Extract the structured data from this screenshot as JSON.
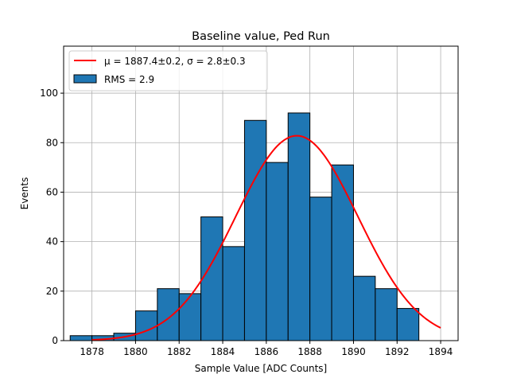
{
  "chart_data": {
    "type": "bar",
    "title": "Baseline value, Ped Run",
    "xlabel": "Sample Value [ADC Counts]",
    "ylabel": "Events",
    "xlim": [
      1876.7,
      1894.8
    ],
    "ylim": [
      0,
      119
    ],
    "xticks": [
      1878,
      1880,
      1882,
      1884,
      1886,
      1888,
      1890,
      1892,
      1894
    ],
    "yticks": [
      0,
      20,
      40,
      60,
      80,
      100
    ],
    "grid": true,
    "legend_position": "top-left",
    "bin_width": 1,
    "bins": [
      {
        "x": 1877.5,
        "count": 2
      },
      {
        "x": 1878.5,
        "count": 2
      },
      {
        "x": 1879.5,
        "count": 3
      },
      {
        "x": 1880.5,
        "count": 12
      },
      {
        "x": 1881.5,
        "count": 21
      },
      {
        "x": 1882.5,
        "count": 19
      },
      {
        "x": 1883.5,
        "count": 50
      },
      {
        "x": 1884.5,
        "count": 38
      },
      {
        "x": 1885.5,
        "count": 89
      },
      {
        "x": 1886.5,
        "count": 72
      },
      {
        "x": 1887.5,
        "count": 92
      },
      {
        "x": 1888.5,
        "count": 58
      },
      {
        "x": 1889.5,
        "count": 71
      },
      {
        "x": 1890.5,
        "count": 26
      },
      {
        "x": 1891.5,
        "count": 21
      },
      {
        "x": 1892.5,
        "count": 13
      }
    ],
    "fit": {
      "type": "gaussian",
      "mu": 1887.4,
      "sigma": 2.8,
      "amplitude": 82.8,
      "x_range": [
        1878,
        1894
      ]
    },
    "series": [
      {
        "name": "μ = 1887.4±0.2, σ = 2.8±0.3",
        "kind": "line",
        "color": "#ff0000"
      },
      {
        "name": "RMS = 2.9",
        "kind": "bar",
        "color": "#1f77b4"
      }
    ],
    "colors": {
      "bar_fill": "#1f77b4",
      "bar_edge": "#000000",
      "fit_line": "#ff0000",
      "grid": "#b0b0b0"
    }
  }
}
